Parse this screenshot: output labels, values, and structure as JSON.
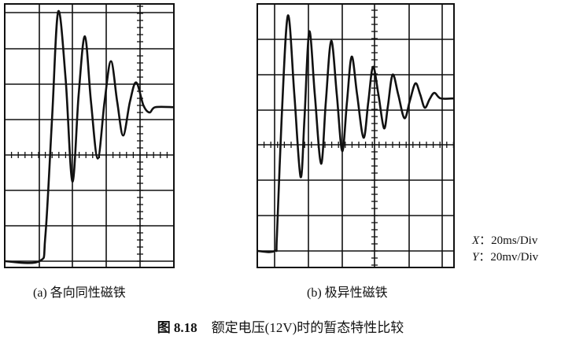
{
  "figure": {
    "number": "图 8.18",
    "caption": "额定电压(12V)时的暂态特性比较"
  },
  "scale": {
    "x_axis_label": "X",
    "x_value": "：20ms/Div",
    "y_axis_label": "Y",
    "y_value": "：20mv/Div"
  },
  "chart_data": [
    {
      "type": "line",
      "title": "(a) 各向同性磁铁",
      "xlabel": "",
      "ylabel": "",
      "x_units": "ms",
      "y_units": "mV",
      "grid": true,
      "trace_color": "#111111",
      "x": [
        0,
        20.5,
        24,
        28,
        31.6,
        36,
        40,
        43.7,
        47.4,
        51,
        55,
        59,
        62.8,
        66.5,
        70,
        74,
        77.7,
        82,
        85.6,
        89,
        100
      ],
      "y": [
        0,
        0,
        14,
        81,
        141,
        103,
        45,
        94,
        127,
        90,
        58,
        90,
        113,
        90,
        71,
        90,
        101,
        88,
        84,
        87,
        87
      ]
    },
    {
      "type": "line",
      "title": "(b) 极异性磁铁",
      "xlabel": "",
      "ylabel": "",
      "x_units": "ms",
      "y_units": "mV",
      "grid": true,
      "trace_color": "#111111",
      "x": [
        0,
        10.2,
        11.6,
        14.4,
        18.1,
        21.9,
        25.6,
        27.9,
        30.7,
        34,
        37.7,
        40.5,
        43.7,
        47,
        50.2,
        53,
        55.8,
        59,
        62.8,
        65.6,
        68.4,
        71.6,
        74.9,
        77.2,
        80,
        83.3,
        87,
        90.2,
        93.5,
        96.3,
        99,
        101.9,
        104.7,
        108.4,
        116.3
      ],
      "y": [
        0,
        0,
        8.4,
        75,
        133,
        88.4,
        41.8,
        75,
        124,
        88.4,
        49.3,
        84,
        118.7,
        88.4,
        56.4,
        84,
        109.8,
        88.4,
        64,
        84,
        104,
        88.4,
        69.3,
        81.8,
        99.6,
        88.4,
        75,
        84.9,
        94.7,
        88.4,
        80.9,
        85.8,
        89.3,
        86.2,
        86.2
      ]
    }
  ]
}
